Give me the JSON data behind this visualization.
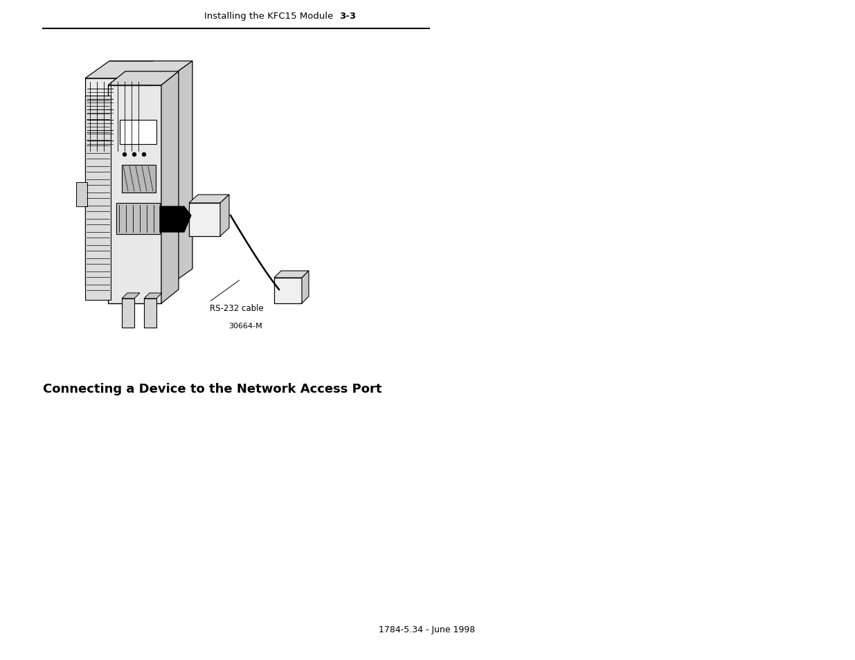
{
  "background_color": "#ffffff",
  "header_left": "Installing the KFC15 Module",
  "header_right": "3-3",
  "footer_text": "1784-5.34 - June 1998",
  "section_heading": "Connecting a Device to the Network Access Port",
  "label_rs232": "RS-232 cable",
  "label_partnum": "30664-M",
  "header_fontsize": 9.5,
  "footer_fontsize": 9,
  "heading_fontsize": 13,
  "label_fontsize": 8.5,
  "partnum_fontsize": 8
}
